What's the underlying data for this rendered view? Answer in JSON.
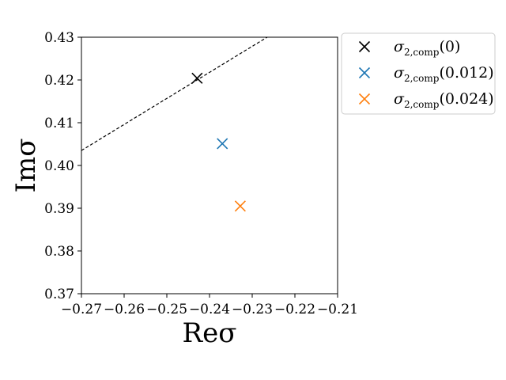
{
  "chart_data": {
    "type": "scatter",
    "xlabel": "Reσ",
    "ylabel": "Imσ",
    "xlim": [
      -0.27,
      -0.21
    ],
    "ylim": [
      0.37,
      0.43
    ],
    "xticks": [
      -0.27,
      -0.26,
      -0.25,
      -0.24,
      -0.23,
      -0.22,
      -0.21
    ],
    "yticks": [
      0.37,
      0.38,
      0.39,
      0.4,
      0.41,
      0.42,
      0.43
    ],
    "xtick_labels": [
      "−0.27",
      "−0.26",
      "−0.25",
      "−0.24",
      "−0.23",
      "−0.22",
      "−0.21"
    ],
    "ytick_labels": [
      "0.37",
      "0.38",
      "0.39",
      "0.40",
      "0.41",
      "0.42",
      "0.43"
    ],
    "grid": false,
    "legend_placement": "outside upper right",
    "series": [
      {
        "name_base": "σ",
        "name_sub": "2,comp",
        "name_arg": "(0)",
        "color": "#000000",
        "marker": "x",
        "x": [
          -0.2429
        ],
        "y": [
          0.4204
        ]
      },
      {
        "name_base": "σ",
        "name_sub": "2,comp",
        "name_arg": "(0.012)",
        "color": "#1f77b4",
        "marker": "x",
        "x": [
          -0.237
        ],
        "y": [
          0.4051
        ]
      },
      {
        "name_base": "σ",
        "name_sub": "2,comp",
        "name_arg": "(0.024)",
        "color": "#ff7f0e",
        "marker": "x",
        "x": [
          -0.2328
        ],
        "y": [
          0.3905
        ]
      }
    ],
    "reference_line": {
      "style": "dashed",
      "color": "#000000",
      "x": [
        -0.27,
        -0.2265
      ],
      "y": [
        0.4035,
        0.43
      ]
    }
  }
}
